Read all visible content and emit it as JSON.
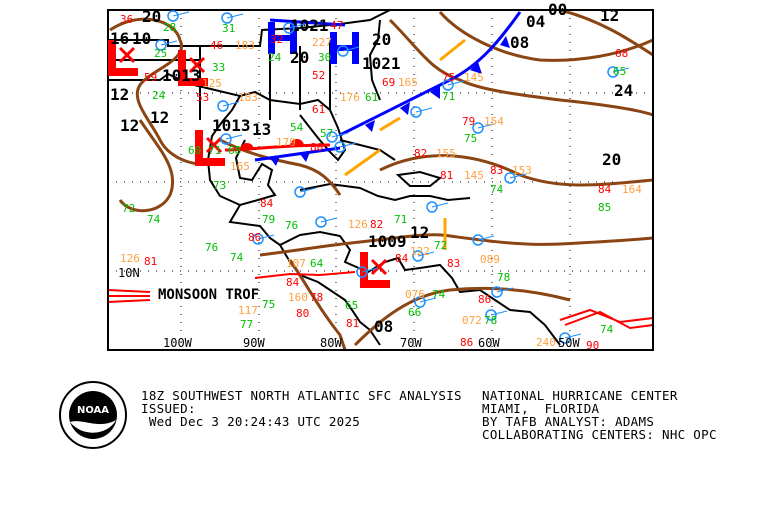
{
  "map": {
    "title": "18Z SOUTHWEST NORTH ATLANTIC SFC ANALYSIS",
    "longitude_labels": [
      "100W",
      "90W",
      "80W",
      "70W",
      "60W",
      "50W"
    ],
    "latitude_labels": [
      "10N"
    ],
    "feature_labels": {
      "monsoon_trough": "MONSOON TROF"
    },
    "pressure_centers": [
      {
        "type": "H",
        "value": "1021",
        "color": "#0000ff"
      },
      {
        "type": "H",
        "value": "1021",
        "color": "#0000ff"
      },
      {
        "type": "L",
        "value": "1013",
        "color": "#ff0000"
      },
      {
        "type": "L",
        "value": "1013",
        "color": "#ff0000"
      },
      {
        "type": "L",
        "value": "1009",
        "color": "#ff0000"
      },
      {
        "type": "L",
        "value": "",
        "color": "#ff0000"
      }
    ],
    "isobar_labels": [
      "20",
      "16",
      "12",
      "12",
      "12",
      "13",
      "20",
      "20",
      "24",
      "20",
      "12",
      "08",
      "04",
      "08",
      "00",
      "12",
      "10"
    ],
    "station_values": [
      {
        "t": "28",
        "c": "g"
      },
      {
        "t": "31",
        "c": "g"
      },
      {
        "t": "36",
        "c": "r"
      },
      {
        "t": "25",
        "c": "g"
      },
      {
        "t": "46",
        "c": "r"
      },
      {
        "t": "183",
        "c": "o"
      },
      {
        "t": "33",
        "c": "g"
      },
      {
        "t": "32",
        "c": "r"
      },
      {
        "t": "227",
        "c": "o"
      },
      {
        "t": "24",
        "c": "g"
      },
      {
        "t": "47",
        "c": "r"
      },
      {
        "t": "30",
        "c": "g"
      },
      {
        "t": "52",
        "c": "r"
      },
      {
        "t": "69",
        "c": "r"
      },
      {
        "t": "165",
        "c": "o"
      },
      {
        "t": "59",
        "c": "r"
      },
      {
        "t": "125",
        "c": "o"
      },
      {
        "t": "24",
        "c": "g"
      },
      {
        "t": "53",
        "c": "r"
      },
      {
        "t": "183",
        "c": "o"
      },
      {
        "t": "61",
        "c": "g"
      },
      {
        "t": "176",
        "c": "o"
      },
      {
        "t": "61",
        "c": "r"
      },
      {
        "t": "54",
        "c": "g"
      },
      {
        "t": "179",
        "c": "o"
      },
      {
        "t": "57",
        "c": "g"
      },
      {
        "t": "80",
        "c": "r"
      },
      {
        "t": "60",
        "c": "g"
      },
      {
        "t": "71",
        "c": "g"
      },
      {
        "t": "68",
        "c": "g"
      },
      {
        "t": "165",
        "c": "o"
      },
      {
        "t": "73",
        "c": "g"
      },
      {
        "t": "75",
        "c": "r"
      },
      {
        "t": "145",
        "c": "o"
      },
      {
        "t": "71",
        "c": "g"
      },
      {
        "t": "79",
        "c": "r"
      },
      {
        "t": "154",
        "c": "o"
      },
      {
        "t": "75",
        "c": "g"
      },
      {
        "t": "82",
        "c": "r"
      },
      {
        "t": "155",
        "c": "o"
      },
      {
        "t": "81",
        "c": "r"
      },
      {
        "t": "145",
        "c": "o"
      },
      {
        "t": "74",
        "c": "g"
      },
      {
        "t": "83",
        "c": "r"
      },
      {
        "t": "153",
        "c": "o"
      },
      {
        "t": "84",
        "c": "r"
      },
      {
        "t": "164",
        "c": "o"
      },
      {
        "t": "85",
        "c": "g"
      },
      {
        "t": "68",
        "c": "r"
      },
      {
        "t": "65",
        "c": "g"
      },
      {
        "t": "72",
        "c": "g"
      },
      {
        "t": "74",
        "c": "g"
      },
      {
        "t": "84",
        "c": "r"
      },
      {
        "t": "79",
        "c": "g"
      },
      {
        "t": "76",
        "c": "g"
      },
      {
        "t": "71",
        "c": "g"
      },
      {
        "t": "82",
        "c": "r"
      },
      {
        "t": "126",
        "c": "o"
      },
      {
        "t": "76",
        "c": "g"
      },
      {
        "t": "86",
        "c": "r"
      },
      {
        "t": "74",
        "c": "g"
      },
      {
        "t": "126",
        "c": "o"
      },
      {
        "t": "81",
        "c": "r"
      },
      {
        "t": "107",
        "c": "o"
      },
      {
        "t": "64",
        "c": "g"
      },
      {
        "t": "84",
        "c": "r"
      },
      {
        "t": "122",
        "c": "o"
      },
      {
        "t": "72",
        "c": "g"
      },
      {
        "t": "84",
        "c": "r"
      },
      {
        "t": "160",
        "c": "o"
      },
      {
        "t": "78",
        "c": "r"
      },
      {
        "t": "117",
        "c": "o"
      },
      {
        "t": "75",
        "c": "g"
      },
      {
        "t": "77",
        "c": "g"
      },
      {
        "t": "80",
        "c": "r"
      },
      {
        "t": "65",
        "c": "g"
      },
      {
        "t": "81",
        "c": "r"
      },
      {
        "t": "076",
        "c": "o"
      },
      {
        "t": "74",
        "c": "g"
      },
      {
        "t": "66",
        "c": "g"
      },
      {
        "t": "83",
        "c": "r"
      },
      {
        "t": "089",
        "c": "o"
      },
      {
        "t": "78",
        "c": "g"
      },
      {
        "t": "86",
        "c": "r"
      },
      {
        "t": "072",
        "c": "o"
      },
      {
        "t": "78",
        "c": "g"
      },
      {
        "t": "86",
        "c": "r"
      },
      {
        "t": "74",
        "c": "g"
      },
      {
        "t": "90",
        "c": "r"
      },
      {
        "t": "240",
        "c": "o"
      }
    ]
  },
  "footer": {
    "left_line1": "18Z SOUTHWEST NORTH ATLANTIC SFC ANALYSIS",
    "left_line2": "ISSUED:",
    "left_line3": " Wed Dec 3 20:24:43 UTC 2025",
    "right_line1": "NATIONAL HURRICANE CENTER",
    "right_line2": "MIAMI,  FLORIDA",
    "right_line3": "BY TAFB ANALYST: ADAMS",
    "right_line4": "COLLABORATING CENTERS: NHC OPC"
  },
  "logo": {
    "text": "NOAA",
    "ring_text": "NATIONAL OCEANIC AND ATMOSPHERIC ADMINISTRATION - U.S. DEPARTMENT OF COMMERCE"
  },
  "colors": {
    "isobar": "#8b4513",
    "cold_front": "#0000ff",
    "warm_front": "#ff0000",
    "high": "#0000ff",
    "low": "#ff0000",
    "station_blue": "#1e90ff",
    "temp": "#ff0000",
    "dew": "#00c000",
    "pressure": "#ffa040",
    "trough": "#ffa500"
  }
}
